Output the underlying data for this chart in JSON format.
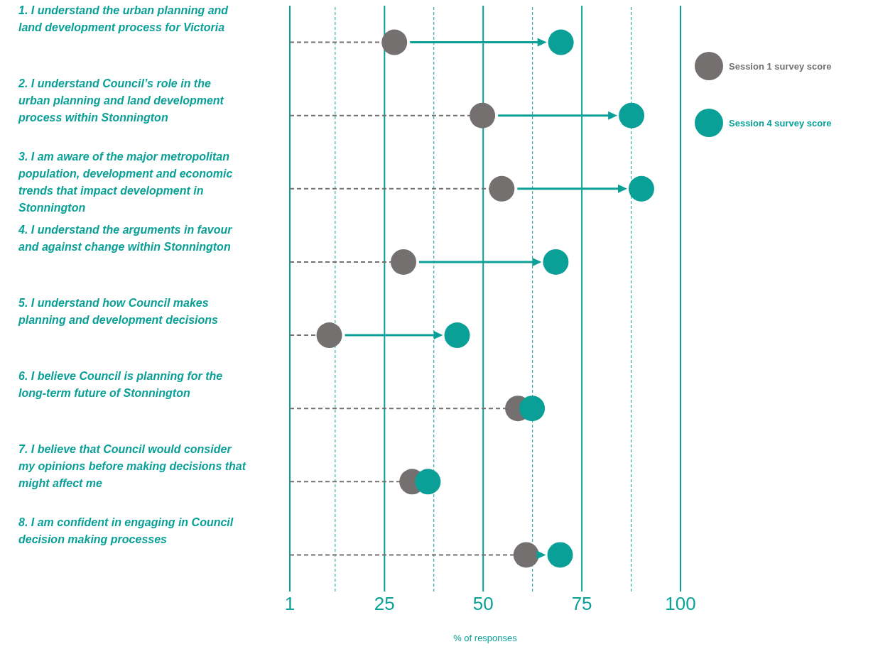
{
  "chart_data": {
    "type": "lollipop",
    "orientation": "horizontal",
    "xlabel": "% of responses",
    "categories": [
      "1. I understand the urban planning and land development process for Victoria",
      "2. I understand Council’s role in the urban planning and land development process within Stonnington",
      "3. I am aware of the major metropolitan population, development and economic trends that impact development in Stonnington",
      "4. I understand the arguments in favour and against change within Stonnington",
      "5. I understand how Council makes planning and development decisions",
      "6. I believe Council is planning for the long-term future of Stonnington",
      "7. I believe that Council would consider my opinions before making decisions that might affect me",
      "8. I am confident in engaging in Council decision making processes"
    ],
    "series": [
      {
        "name": "Session 1 survey score",
        "type": "lollipop",
        "line_style": "dashed",
        "color": "#757070",
        "values": [
          27.5,
          49.8,
          54.7,
          29.8,
          11,
          58.8,
          32,
          60.9
        ]
      },
      {
        "name": "Session 4 survey score",
        "type": "scatter",
        "color": "#0aa098",
        "values": [
          69.7,
          87.6,
          90.1,
          68.4,
          43.4,
          62.4,
          36,
          69.5
        ]
      }
    ],
    "xlim": [
      1,
      100
    ],
    "xticks": [
      1,
      {
        "value": 12.5,
        "label": null
      },
      25,
      {
        "value": 37.5,
        "label": null
      },
      50,
      {
        "value": 62.5,
        "label": null
      },
      75,
      {
        "value": 87.5,
        "label": null
      },
      100
    ],
    "grid": "x",
    "legend": "top right",
    "marker": "circle"
  }
}
